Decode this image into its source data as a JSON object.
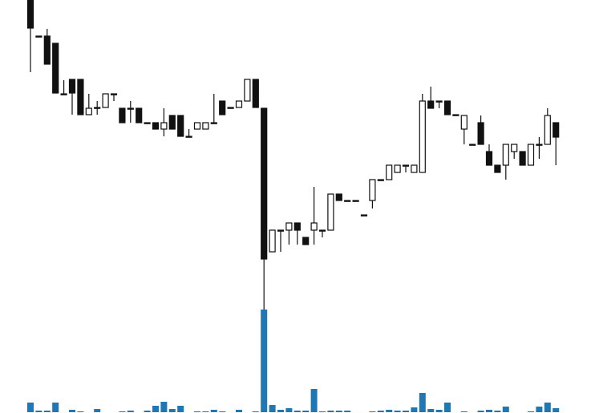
{
  "chart_data": {
    "type": "candlestick",
    "ylim": [
      0,
      515
    ],
    "open": [
      515,
      470,
      470,
      461,
      398,
      416,
      416,
      372,
      381,
      381,
      398,
      380,
      380,
      380,
      362,
      362,
      354,
      371,
      371,
      345,
      354,
      354,
      362,
      389,
      381,
      381,
      389,
      416,
      380,
      201,
      228,
      228,
      237,
      219,
      228,
      228,
      228,
      273,
      265,
      265,
      247,
      265,
      291,
      291,
      300,
      309,
      300,
      300,
      389,
      389,
      389,
      372,
      354,
      335,
      362,
      326,
      309,
      309,
      326,
      326,
      309,
      335,
      335,
      362
    ],
    "high": [
      515,
      470,
      479,
      461,
      415,
      416,
      416,
      398,
      389,
      398,
      398,
      380,
      389,
      380,
      362,
      362,
      380,
      371,
      371,
      354,
      362,
      362,
      398,
      389,
      381,
      389,
      416,
      416,
      380,
      228,
      228,
      237,
      237,
      219,
      282,
      228,
      273,
      273,
      265,
      265,
      247,
      291,
      291,
      309,
      309,
      309,
      309,
      398,
      407,
      389,
      389,
      372,
      371,
      335,
      371,
      335,
      309,
      335,
      335,
      326,
      335,
      344,
      380,
      362
    ],
    "low": [
      425,
      470,
      435,
      399,
      398,
      372,
      372,
      372,
      372,
      381,
      389,
      362,
      362,
      362,
      362,
      354,
      345,
      354,
      345,
      345,
      354,
      354,
      362,
      372,
      381,
      381,
      389,
      381,
      129,
      201,
      201,
      210,
      210,
      210,
      210,
      219,
      228,
      265,
      265,
      265,
      247,
      255,
      291,
      291,
      300,
      300,
      300,
      300,
      380,
      380,
      372,
      372,
      335,
      335,
      335,
      309,
      300,
      291,
      317,
      309,
      309,
      317,
      335,
      309
    ],
    "close": [
      480,
      470,
      435,
      399,
      398,
      399,
      372,
      380,
      381,
      398,
      398,
      362,
      380,
      362,
      362,
      354,
      362,
      354,
      345,
      345,
      362,
      362,
      362,
      372,
      381,
      389,
      416,
      381,
      192,
      228,
      228,
      237,
      228,
      210,
      237,
      228,
      273,
      265,
      265,
      265,
      247,
      291,
      291,
      309,
      309,
      309,
      309,
      389,
      380,
      389,
      372,
      372,
      371,
      335,
      335,
      309,
      300,
      335,
      335,
      309,
      335,
      335,
      371,
      344
    ],
    "up_color": "#ffffff",
    "down_color": "#111111",
    "volume": {
      "ylim": [
        0,
        128
      ],
      "color": "#1f77b4",
      "values": [
        12,
        2,
        2,
        12,
        0,
        3,
        1,
        0,
        4,
        0,
        0,
        1,
        2,
        0,
        2,
        8,
        13,
        4,
        8,
        0,
        1,
        1,
        3,
        1,
        0,
        3,
        0,
        1,
        128,
        9,
        3,
        5,
        2,
        2,
        29,
        1,
        2,
        2,
        2,
        0,
        0,
        1,
        2,
        3,
        2,
        2,
        6,
        24,
        4,
        3,
        12,
        0,
        1,
        0,
        2,
        3,
        2,
        7,
        0,
        0,
        1,
        7,
        12,
        5
      ]
    }
  }
}
